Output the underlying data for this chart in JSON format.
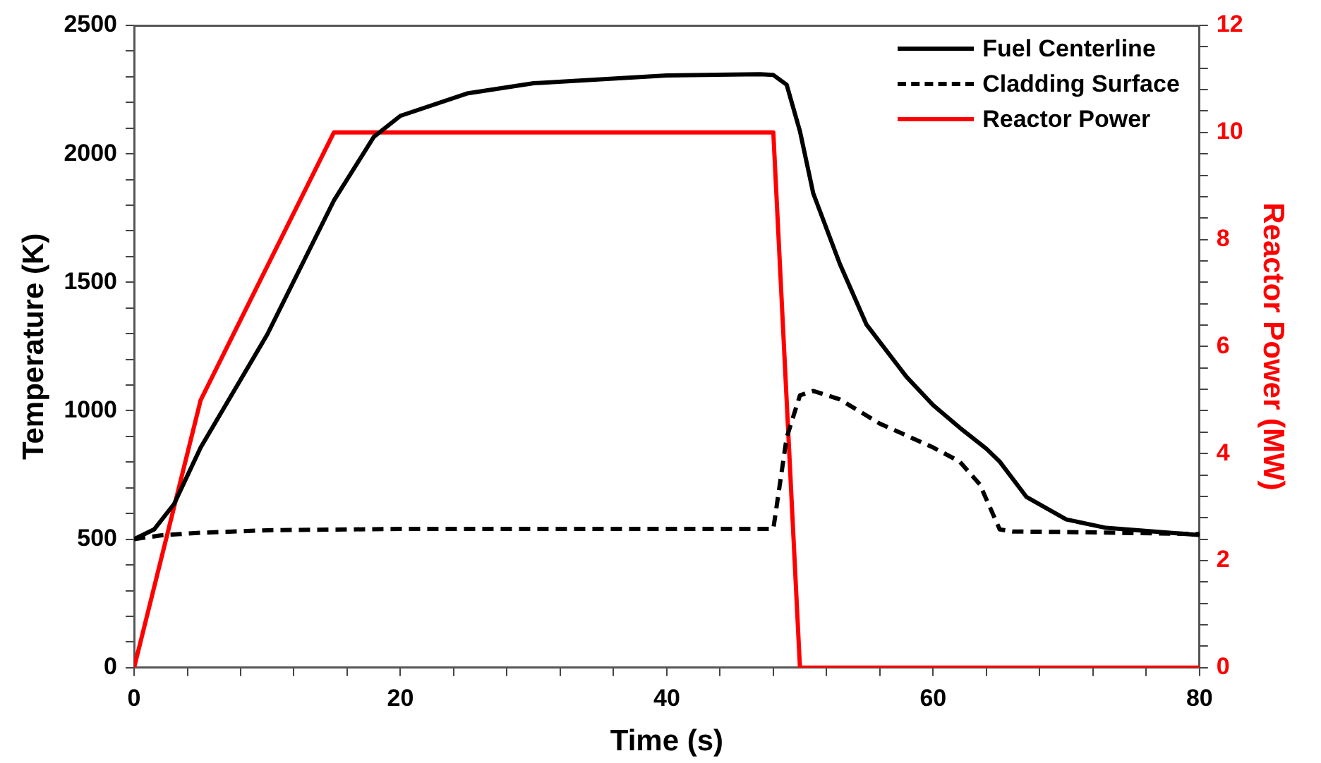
{
  "chart_data": {
    "type": "line",
    "xlabel": "Time (s)",
    "ylabel": "Temperature (K)",
    "y2label": "Reactor Power (MW)",
    "xlim": [
      0,
      80
    ],
    "xticks": [
      0,
      {
        "value": 4,
        "label": null
      },
      {
        "value": 8,
        "label": null
      },
      {
        "value": 12,
        "label": null
      },
      {
        "value": 16,
        "label": null
      },
      20,
      {
        "value": 24,
        "label": null
      },
      {
        "value": 28,
        "label": null
      },
      {
        "value": 32,
        "label": null
      },
      {
        "value": 36,
        "label": null
      },
      40,
      {
        "value": 44,
        "label": null
      },
      {
        "value": 48,
        "label": null
      },
      {
        "value": 52,
        "label": null
      },
      {
        "value": 56,
        "label": null
      },
      60,
      {
        "value": 64,
        "label": null
      },
      {
        "value": 68,
        "label": null
      },
      {
        "value": 72,
        "label": null
      },
      {
        "value": 76,
        "label": null
      },
      80
    ],
    "ylim": [
      0,
      2500
    ],
    "yticks": [
      0,
      {
        "value": 100,
        "label": null
      },
      {
        "value": 200,
        "label": null
      },
      {
        "value": 300,
        "label": null
      },
      {
        "value": 400,
        "label": null
      },
      500,
      {
        "value": 600,
        "label": null
      },
      {
        "value": 700,
        "label": null
      },
      {
        "value": 800,
        "label": null
      },
      {
        "value": 900,
        "label": null
      },
      1000,
      {
        "value": 1100,
        "label": null
      },
      {
        "value": 1200,
        "label": null
      },
      {
        "value": 1300,
        "label": null
      },
      {
        "value": 1400,
        "label": null
      },
      1500,
      {
        "value": 1600,
        "label": null
      },
      {
        "value": 1700,
        "label": null
      },
      {
        "value": 1800,
        "label": null
      },
      {
        "value": 1900,
        "label": null
      },
      2000,
      {
        "value": 2100,
        "label": null
      },
      {
        "value": 2200,
        "label": null
      },
      {
        "value": 2300,
        "label": null
      },
      {
        "value": 2400,
        "label": null
      },
      2500
    ],
    "y2lim": [
      0,
      12
    ],
    "y2ticks": [
      0,
      {
        "value": 0.4,
        "label": null
      },
      {
        "value": 0.8,
        "label": null
      },
      {
        "value": 1.2,
        "label": null
      },
      {
        "value": 1.6,
        "label": null
      },
      2,
      {
        "value": 2.4,
        "label": null
      },
      {
        "value": 2.8,
        "label": null
      },
      {
        "value": 3.2,
        "label": null
      },
      {
        "value": 3.6,
        "label": null
      },
      4,
      {
        "value": 4.4,
        "label": null
      },
      {
        "value": 4.8,
        "label": null
      },
      {
        "value": 5.2,
        "label": null
      },
      {
        "value": 5.6,
        "label": null
      },
      6,
      {
        "value": 6.4,
        "label": null
      },
      {
        "value": 6.8,
        "label": null
      },
      {
        "value": 7.2,
        "label": null
      },
      {
        "value": 7.6,
        "label": null
      },
      8,
      {
        "value": 8.4,
        "label": null
      },
      {
        "value": 8.8,
        "label": null
      },
      {
        "value": 9.2,
        "label": null
      },
      {
        "value": 9.6,
        "label": null
      },
      10,
      {
        "value": 10.4,
        "label": null
      },
      {
        "value": 10.8,
        "label": null
      },
      {
        "value": 11.2,
        "label": null
      },
      {
        "value": 11.6,
        "label": null
      },
      12
    ],
    "grid": false,
    "legend": "top right",
    "marker": "none",
    "series": [
      {
        "name": "Fuel Centerline",
        "color": "#000000",
        "line_style": "solid",
        "x": [
          0,
          1.5,
          3,
          5,
          10,
          15,
          18,
          20,
          25,
          30,
          40,
          47,
          48,
          49,
          50,
          51,
          53,
          55,
          58,
          60,
          62,
          64,
          65,
          67,
          70,
          73,
          80
        ],
        "values": [
          500,
          538,
          637,
          857,
          1297,
          1818,
          2066,
          2148,
          2235,
          2275,
          2305,
          2310,
          2307,
          2269,
          2088,
          1846,
          1571,
          1335,
          1132,
          1022,
          934,
          852,
          802,
          665,
          577,
          544,
          516
        ]
      },
      {
        "name": "Cladding Surface",
        "color": "#000000",
        "line_style": "dashed",
        "x": [
          0,
          2,
          5,
          10,
          20,
          47.5,
          48,
          49,
          50,
          51,
          53,
          56,
          60,
          62,
          63.5,
          65,
          66,
          70,
          80
        ],
        "values": [
          500,
          515,
          525,
          535,
          540,
          540,
          540,
          895,
          1060,
          1077,
          1044,
          950,
          857,
          802,
          714,
          538,
          530,
          528,
          520
        ]
      },
      {
        "name": "Reactor Power",
        "color": "#ff0000",
        "line_style": "solid",
        "axis": "y2",
        "x": [
          0,
          5,
          15,
          48,
          50,
          80
        ],
        "values": [
          0,
          5,
          10,
          10,
          0,
          0
        ]
      }
    ]
  }
}
